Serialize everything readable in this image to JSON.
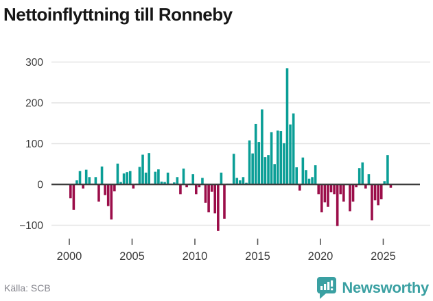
{
  "title": "Nettoinflyttning till Ronneby",
  "source": "Källa: SCB",
  "branding": {
    "name": "Newsworthy",
    "color": "#3aa0a2"
  },
  "chart_data": {
    "type": "bar",
    "title": "Nettoinflyttning till Ronneby",
    "xlabel": "",
    "ylabel": "",
    "ylim": [
      -135,
      310
    ],
    "yticks": [
      300,
      200,
      100,
      0,
      -100
    ],
    "ytick_labels": [
      "300",
      "200",
      "100",
      "0",
      "−100"
    ],
    "xticks": [
      2000,
      2005,
      2010,
      2015,
      2020,
      2025
    ],
    "xtick_labels": [
      "2000",
      "2005",
      "2010",
      "2015",
      "2020",
      "2025"
    ],
    "grid": true,
    "legend": false,
    "colors": {
      "positive": "#0a9e96",
      "negative": "#9b0d49",
      "zero_line": "#3d3d3d",
      "gridline": "#e4e4e4"
    },
    "categories": [
      "2000Q1",
      "2000Q2",
      "2000Q3",
      "2000Q4",
      "2001Q1",
      "2001Q2",
      "2001Q3",
      "2001Q4",
      "2002Q1",
      "2002Q2",
      "2002Q3",
      "2002Q4",
      "2003Q1",
      "2003Q2",
      "2003Q3",
      "2003Q4",
      "2004Q1",
      "2004Q2",
      "2004Q3",
      "2004Q4",
      "2005Q1",
      "2005Q2",
      "2005Q3",
      "2005Q4",
      "2006Q1",
      "2006Q2",
      "2006Q3",
      "2006Q4",
      "2007Q1",
      "2007Q2",
      "2007Q3",
      "2007Q4",
      "2008Q1",
      "2008Q2",
      "2008Q3",
      "2008Q4",
      "2009Q1",
      "2009Q2",
      "2009Q3",
      "2009Q4",
      "2010Q1",
      "2010Q2",
      "2010Q3",
      "2010Q4",
      "2011Q1",
      "2011Q2",
      "2011Q3",
      "2011Q4",
      "2012Q1",
      "2012Q2",
      "2012Q3",
      "2012Q4",
      "2013Q1",
      "2013Q2",
      "2013Q3",
      "2013Q4",
      "2014Q1",
      "2014Q2",
      "2014Q3",
      "2014Q4",
      "2015Q1",
      "2015Q2",
      "2015Q3",
      "2015Q4",
      "2016Q1",
      "2016Q2",
      "2016Q3",
      "2016Q4",
      "2017Q1",
      "2017Q2",
      "2017Q3",
      "2017Q4",
      "2018Q1",
      "2018Q2",
      "2018Q3",
      "2018Q4",
      "2019Q1",
      "2019Q2",
      "2019Q3",
      "2019Q4",
      "2020Q1",
      "2020Q2",
      "2020Q3",
      "2020Q4",
      "2021Q1",
      "2021Q2",
      "2021Q3",
      "2021Q4",
      "2022Q1",
      "2022Q2",
      "2022Q3",
      "2022Q4",
      "2023Q1",
      "2023Q2",
      "2023Q3",
      "2023Q4",
      "2024Q1",
      "2024Q2",
      "2024Q3",
      "2024Q4",
      "2025Q1",
      "2025Q2",
      "2025Q3"
    ],
    "values": [
      -34,
      -62,
      10,
      33,
      -10,
      36,
      18,
      2,
      18,
      -42,
      44,
      -26,
      -53,
      -86,
      -17,
      51,
      6,
      27,
      30,
      33,
      -10,
      2,
      43,
      73,
      29,
      77,
      2,
      31,
      37,
      7,
      6,
      29,
      2,
      5,
      18,
      -24,
      39,
      -7,
      2,
      25,
      -24,
      -7,
      16,
      -45,
      -68,
      -18,
      -71,
      -114,
      29,
      -84,
      2,
      2,
      75,
      16,
      10,
      18,
      4,
      108,
      76,
      148,
      104,
      184,
      67,
      72,
      128,
      50,
      132,
      131,
      101,
      285,
      147,
      174,
      42,
      -15,
      66,
      35,
      14,
      18,
      47,
      -24,
      -68,
      -44,
      -55,
      -19,
      -24,
      -102,
      -24,
      -42,
      0,
      -66,
      -42,
      -7,
      40,
      54,
      -10,
      25,
      -88,
      -39,
      -51,
      -36,
      8,
      72,
      -8
    ]
  }
}
